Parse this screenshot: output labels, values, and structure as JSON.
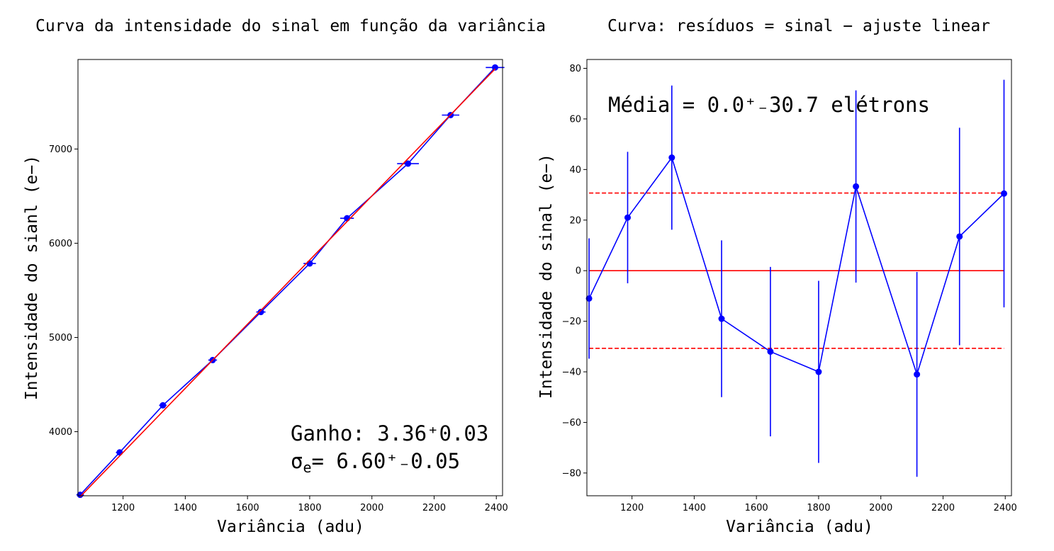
{
  "chart_data": [
    {
      "type": "line",
      "title": "Curva da intensidade do sinal em função da variância",
      "xlabel": "Variância (adu)",
      "ylabel": "Intensidade do sianl (e−)",
      "xlim": [
        1055,
        2420
      ],
      "ylim": [
        3320,
        7950
      ],
      "xticks": [
        1200,
        1400,
        1600,
        1800,
        2000,
        2200,
        2400
      ],
      "yticks": [
        4000,
        5000,
        6000,
        7000
      ],
      "series": [
        {
          "color": "#0000ff",
          "marker": "circle",
          "x": [
            1062,
            1189,
            1328,
            1488,
            1643,
            1800,
            1920,
            2116,
            2253,
            2396
          ],
          "y": [
            3330,
            3780,
            4280,
            4760,
            5270,
            5785,
            6265,
            6845,
            7360,
            7865
          ],
          "xerr": [
            12,
            12,
            12,
            14,
            15,
            20,
            22,
            35,
            28,
            30
          ]
        },
        {
          "color": "#ff0000",
          "x": [
            1062,
            2396
          ],
          "y": [
            3310,
            7850
          ]
        }
      ],
      "annotations": [
        {
          "text": "Ganho: 3.36⁺0.03"
        },
        {
          "text": "σ",
          "sub": "e",
          "rest": "= 6.60⁺₋0.05"
        }
      ]
    },
    {
      "type": "line",
      "title": "Curva: resíduos = sinal − ajuste linear",
      "xlabel": "Variância (adu)",
      "ylabel": "Intensidade do sinal (e−)",
      "xlim": [
        1055,
        2420
      ],
      "ylim": [
        -89,
        83.5
      ],
      "xticks": [
        1200,
        1400,
        1600,
        1800,
        2000,
        2200,
        2400
      ],
      "yticks": [
        -80,
        -60,
        -40,
        -20,
        0,
        20,
        40,
        60,
        80
      ],
      "series": [
        {
          "color": "#0000ff",
          "marker": "circle",
          "x": [
            1062,
            1186,
            1328,
            1488,
            1645,
            1800,
            1920,
            2116,
            2253,
            2396
          ],
          "y": [
            -11,
            21,
            44.7,
            -19,
            -32,
            -40,
            33.3,
            -41,
            13.5,
            30.5
          ],
          "yerr": [
            23.8,
            26,
            28.5,
            31,
            33.5,
            36,
            38,
            40.5,
            43,
            45
          ]
        }
      ],
      "hlines": [
        {
          "y": 0,
          "color": "#ff0000",
          "style": "solid"
        },
        {
          "y": 30.7,
          "color": "#ff0000",
          "style": "dashed"
        },
        {
          "y": -30.7,
          "color": "#ff0000",
          "style": "dashed"
        }
      ],
      "annotations": [
        {
          "text": "Média = 0.0⁺₋30.7 elétrons"
        }
      ]
    }
  ]
}
